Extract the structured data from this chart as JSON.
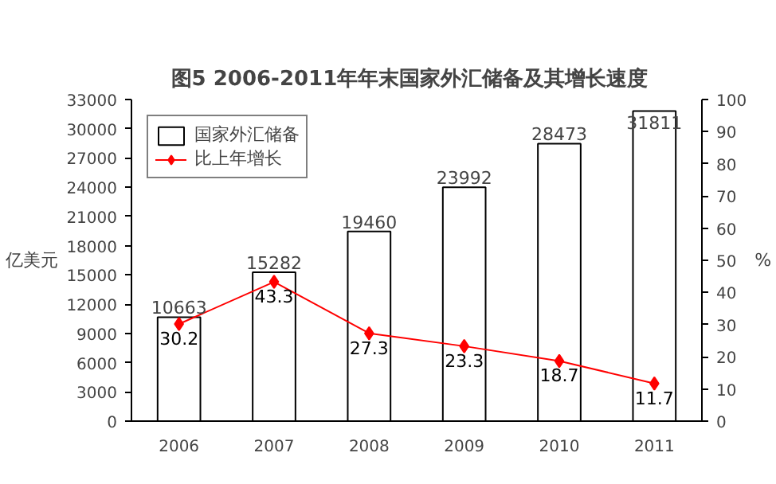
{
  "chart_data": {
    "type": "bar",
    "title": "图5   2006-2011年年末国家外汇储备及其增长速度",
    "ylabel": "亿美元",
    "y2label": "%",
    "categories": [
      "2006",
      "2007",
      "2008",
      "2009",
      "2010",
      "2011"
    ],
    "series": [
      {
        "name": "国家外汇储备",
        "color": "#ffffff",
        "values": [
          10663,
          15282,
          19460,
          23992,
          28473,
          31811
        ]
      },
      {
        "name": "比上年增长",
        "type": "line",
        "axis": "y2",
        "color": "#ff0000",
        "marker": "diamond",
        "values": [
          30.2,
          43.3,
          27.3,
          23.3,
          18.7,
          11.7
        ]
      }
    ],
    "ylim": [
      0,
      33000
    ],
    "yticks": [
      0,
      3000,
      6000,
      9000,
      12000,
      15000,
      18000,
      21000,
      24000,
      27000,
      30000,
      33000
    ],
    "y2lim": [
      0,
      100
    ],
    "y2ticks": [
      0,
      10,
      20,
      30,
      40,
      50,
      60,
      70,
      80,
      90,
      100
    ],
    "data_labels": true,
    "grid": false,
    "legend": "top left"
  }
}
